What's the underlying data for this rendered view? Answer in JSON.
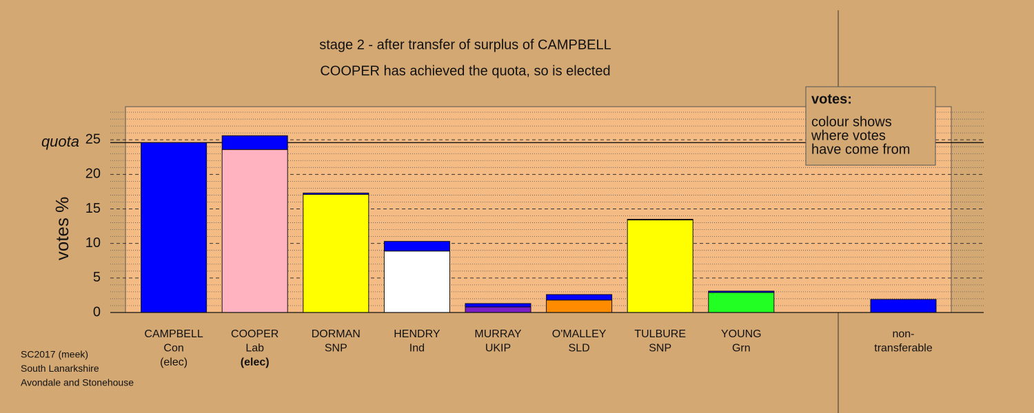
{
  "chart_data": {
    "type": "stacked-bar",
    "title": "stage 2 - after transfer of surplus of CAMPBELL",
    "subtitle": "COOPER has achieved the quota, so is elected",
    "y_label": "votes %",
    "categories": [
      [
        "CAMPBELL",
        "Con",
        "(elec)"
      ],
      [
        "COOPER",
        "Lab",
        "(elec)"
      ],
      [
        "DORMAN",
        "SNP"
      ],
      [
        "HENDRY",
        "Ind"
      ],
      [
        "MURRAY",
        "UKIP"
      ],
      [
        "O'MALLEY",
        "SLD"
      ],
      [
        "TULBURE",
        "SNP"
      ],
      [
        "YOUNG",
        "Grn"
      ],
      null,
      [
        "non-",
        "transferable"
      ]
    ],
    "series": [
      {
        "colors": [
          "#0000ff",
          "#ffb3c1",
          "#ffff00",
          "#ffffff",
          "#7a1fc8",
          "#ff8c00",
          "#ffff00",
          "#22ff22",
          null,
          "#0000ff"
        ],
        "values": [
          24.6,
          23.6,
          17.1,
          8.9,
          0.8,
          1.8,
          13.4,
          2.9,
          null,
          0
        ]
      },
      {
        "color": "#0000ff",
        "values": [
          0,
          2.0,
          0.2,
          1.4,
          0.5,
          0.8,
          0.1,
          0.2,
          null,
          1.9
        ]
      }
    ],
    "ylim": [
      0,
      29.8
    ],
    "yticks": [
      0,
      5,
      10,
      15,
      20,
      25
    ],
    "minor_yticks": [
      1,
      2,
      3,
      4,
      6,
      7,
      8,
      9,
      11,
      12,
      13,
      14,
      16,
      17,
      18,
      19,
      21,
      22,
      23,
      24,
      26,
      27,
      28,
      29
    ],
    "quota": {
      "value": 24.6,
      "label": "quota"
    },
    "grid": true,
    "legend": {
      "title": "votes:",
      "lines": [
        "colour shows",
        "where votes",
        "have come from"
      ]
    },
    "footer": [
      "SC2017 (meek)",
      "South Lanarkshire",
      "Avondale and Stonehouse"
    ]
  }
}
